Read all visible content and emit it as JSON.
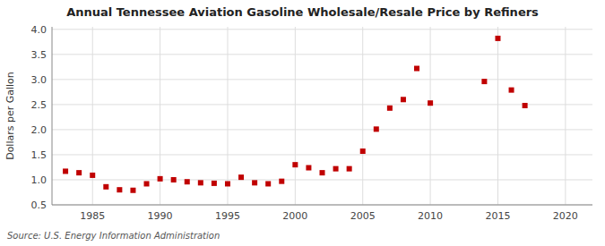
{
  "chart_data": {
    "type": "scatter",
    "title": "Annual Tennessee Aviation Gasoline Wholesale/Resale Price by Refiners",
    "y_label": "Dollars per Gallon",
    "source": "Source: U.S. Energy Information Administration",
    "x": [
      1983,
      1984,
      1985,
      1986,
      1987,
      1988,
      1989,
      1990,
      1991,
      1992,
      1993,
      1994,
      1995,
      1996,
      1997,
      1998,
      1999,
      2000,
      2001,
      2002,
      2003,
      2004,
      2005,
      2006,
      2007,
      2008,
      2009,
      2010,
      2014,
      2015,
      2016,
      2017
    ],
    "values": [
      1.17,
      1.14,
      1.09,
      0.86,
      0.8,
      0.79,
      0.92,
      1.02,
      1.0,
      0.96,
      0.94,
      0.93,
      0.92,
      1.05,
      0.94,
      0.92,
      0.97,
      1.3,
      1.24,
      1.14,
      1.22,
      1.22,
      1.57,
      2.01,
      2.43,
      2.6,
      3.22,
      2.53,
      2.96,
      3.82,
      2.79,
      2.48
    ],
    "color": "#c00000",
    "marker": "square",
    "xlim": [
      1982,
      2022
    ],
    "ylim": [
      0.5,
      4.05
    ],
    "xticks": [
      1985,
      1990,
      1995,
      2000,
      2005,
      2010,
      2015,
      2020
    ],
    "yticks": [
      0.5,
      {
        "value": 1.0,
        "label": "1.0"
      },
      1.5,
      {
        "value": 2.0,
        "label": "2.0"
      },
      2.5,
      {
        "value": 3.0,
        "label": "3.0"
      },
      3.5,
      {
        "value": 4.0,
        "label": "4.0"
      }
    ],
    "grid": true
  }
}
